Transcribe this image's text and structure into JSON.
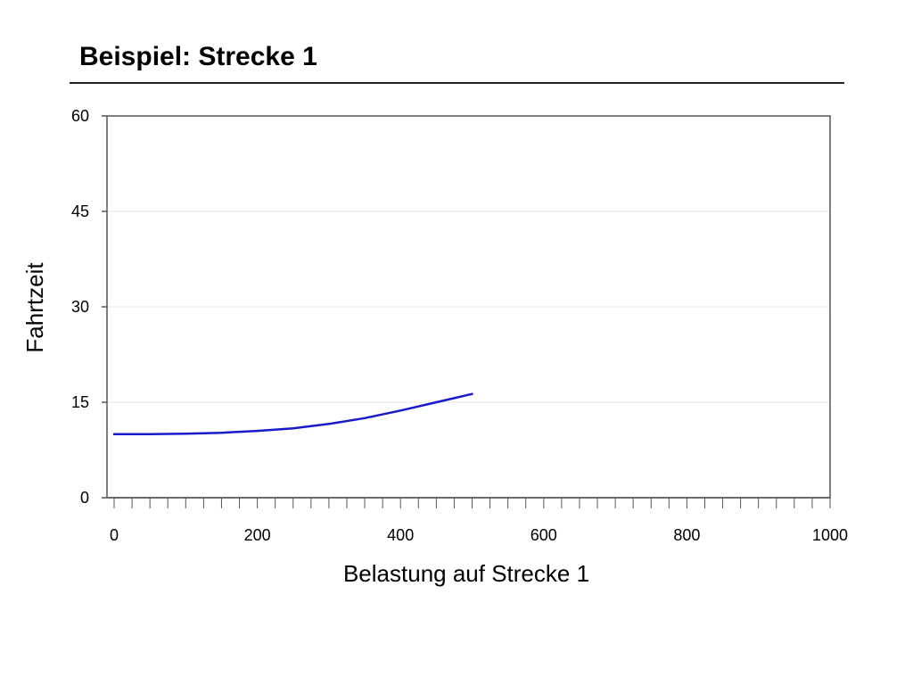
{
  "slide": {
    "title": "Beispiel: Strecke 1"
  },
  "chart_data": {
    "type": "line",
    "title": "",
    "xlabel": "Belastung auf Strecke 1",
    "ylabel": "Fahrtzeit",
    "xlim": [
      0,
      1000
    ],
    "ylim": [
      0,
      60
    ],
    "x_ticks": [
      "0",
      "200",
      "400",
      "600",
      "800",
      "1000"
    ],
    "y_ticks": [
      "0",
      "15",
      "30",
      "45",
      "60"
    ],
    "x_tick_values": [
      0,
      200,
      400,
      600,
      800,
      1000
    ],
    "y_tick_values": [
      0,
      15,
      30,
      45,
      60
    ],
    "grid": "horizontal",
    "legend": "none",
    "series": [
      {
        "color": "#1a1acc",
        "x": [
          0,
          50,
          100,
          150,
          200,
          250,
          300,
          350,
          400,
          450,
          500
        ],
        "y": [
          10.0,
          10.0,
          10.05,
          10.2,
          10.5,
          10.9,
          11.6,
          12.5,
          13.7,
          15.0,
          16.3
        ]
      }
    ]
  }
}
